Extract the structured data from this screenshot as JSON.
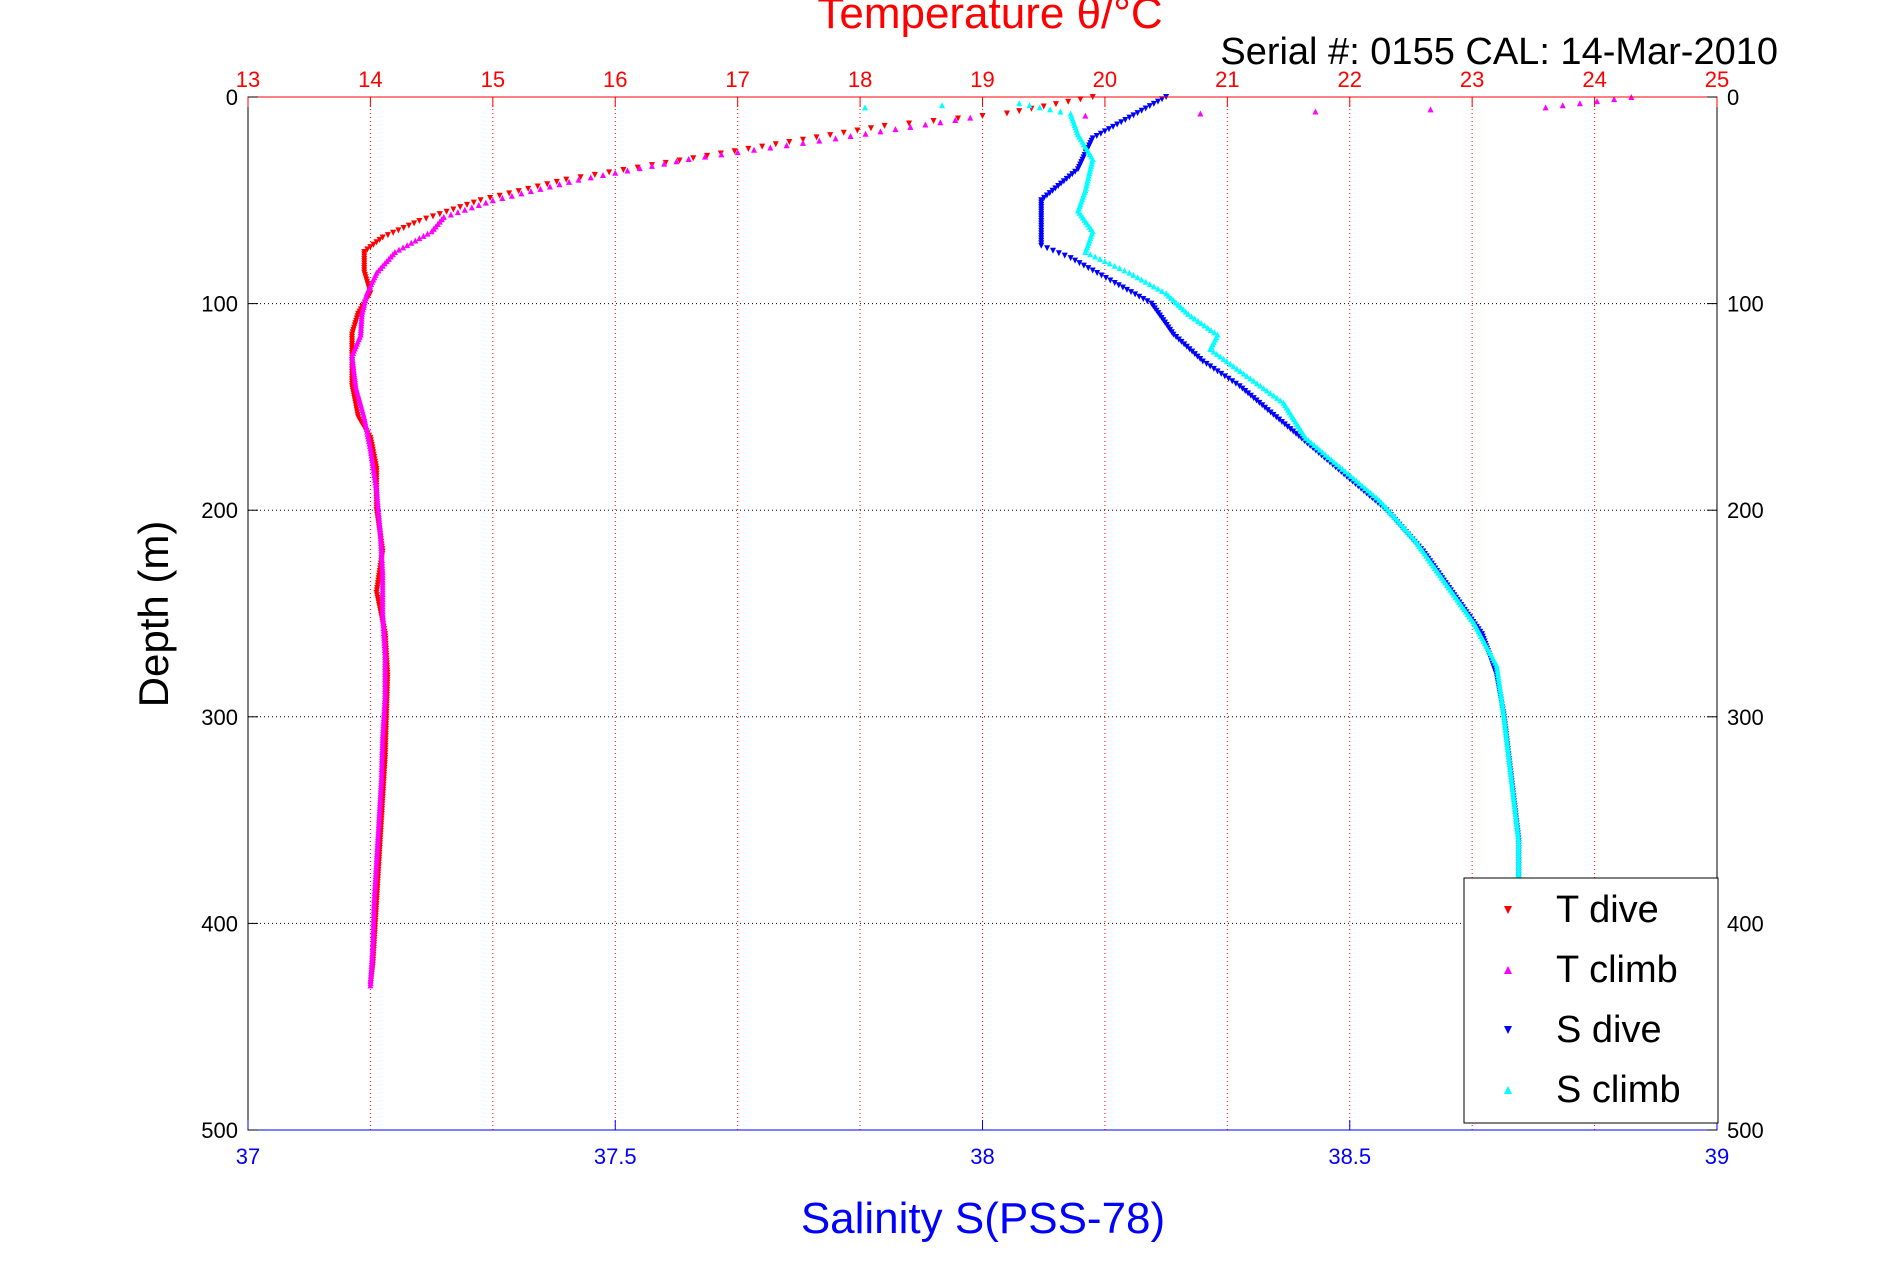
{
  "chart_data": {
    "type": "scatter",
    "title_top": "Temperature θ/°C",
    "subtitle": "Serial #: 0155  CAL: 14-Mar-2010",
    "xlabel_bottom": "Salinity S(PSS-78)",
    "ylabel": "Depth (m)",
    "x_top_axis": {
      "label": "Temperature θ/°C",
      "range": [
        13,
        25
      ],
      "ticks": [
        "13",
        "14",
        "15",
        "16",
        "17",
        "18",
        "19",
        "20",
        "21",
        "22",
        "23",
        "24",
        "25"
      ]
    },
    "x_bottom_axis": {
      "label": "Salinity S(PSS-78)",
      "range": [
        37,
        39
      ],
      "ticks": [
        "37",
        "37.5",
        "38",
        "38.5",
        "39"
      ]
    },
    "y_axis": {
      "label": "Depth (m)",
      "range": [
        0,
        500
      ],
      "reversed": true,
      "ticks": [
        "0",
        "100",
        "200",
        "300",
        "400",
        "500"
      ]
    },
    "grid": true,
    "legend_position": "bottom-right",
    "colors": {
      "t_dive": "#ff0000",
      "t_climb": "#ff00ff",
      "s_dive": "#0000ff",
      "s_climb": "#00ffff",
      "temp_axis": "#ff0000",
      "sal_axis": "#0000ff"
    },
    "series": [
      {
        "name": "T dive",
        "axis": "temperature",
        "color": "#ff0000",
        "marker": "triangle-down",
        "points": [
          [
            19.9,
            0
          ],
          [
            19.2,
            8
          ],
          [
            18.2,
            14
          ],
          [
            17.2,
            24
          ],
          [
            16.3,
            33
          ],
          [
            15.6,
            40
          ],
          [
            14.9,
            50
          ],
          [
            14.4,
            60
          ],
          [
            14.1,
            68
          ],
          [
            13.95,
            75
          ],
          [
            13.95,
            85
          ],
          [
            14.0,
            95
          ],
          [
            13.9,
            105
          ],
          [
            13.85,
            115
          ],
          [
            13.85,
            125
          ],
          [
            13.85,
            140
          ],
          [
            13.9,
            155
          ],
          [
            14.0,
            165
          ],
          [
            14.05,
            180
          ],
          [
            14.05,
            200
          ],
          [
            14.1,
            220
          ],
          [
            14.05,
            240
          ],
          [
            14.12,
            260
          ],
          [
            14.14,
            280
          ],
          [
            14.13,
            300
          ],
          [
            14.12,
            320
          ],
          [
            14.1,
            340
          ],
          [
            14.08,
            360
          ],
          [
            14.06,
            380
          ],
          [
            14.04,
            400
          ],
          [
            14.02,
            420
          ],
          [
            14.0,
            430
          ]
        ]
      },
      {
        "name": "T climb",
        "axis": "temperature",
        "color": "#ff00ff",
        "marker": "triangle-up",
        "points": [
          [
            24.3,
            0
          ],
          [
            23.6,
            5
          ],
          [
            18.9,
            10
          ],
          [
            17.8,
            20
          ],
          [
            16.6,
            30
          ],
          [
            15.7,
            40
          ],
          [
            15.0,
            50
          ],
          [
            14.6,
            58
          ],
          [
            14.5,
            65
          ],
          [
            14.2,
            75
          ],
          [
            14.05,
            85
          ],
          [
            13.97,
            95
          ],
          [
            13.93,
            105
          ],
          [
            13.92,
            115
          ],
          [
            13.85,
            125
          ],
          [
            13.88,
            140
          ],
          [
            13.95,
            155
          ],
          [
            14.0,
            170
          ],
          [
            14.05,
            190
          ],
          [
            14.08,
            210
          ],
          [
            14.1,
            230
          ],
          [
            14.1,
            250
          ],
          [
            14.12,
            270
          ],
          [
            14.12,
            290
          ],
          [
            14.1,
            310
          ],
          [
            14.09,
            330
          ],
          [
            14.07,
            350
          ],
          [
            14.05,
            370
          ],
          [
            14.03,
            390
          ],
          [
            14.02,
            410
          ],
          [
            14.0,
            430
          ]
        ]
      }
    ],
    "series_s": [
      {
        "name": "S dive",
        "axis": "salinity",
        "color": "#0000ff",
        "marker": "triangle-down",
        "points": [
          [
            38.25,
            0
          ],
          [
            38.2,
            10
          ],
          [
            38.15,
            20
          ],
          [
            38.13,
            35
          ],
          [
            38.08,
            50
          ],
          [
            38.08,
            60
          ],
          [
            38.08,
            72
          ],
          [
            38.12,
            78
          ],
          [
            38.18,
            90
          ],
          [
            38.23,
            100
          ],
          [
            38.26,
            115
          ],
          [
            38.3,
            128
          ],
          [
            38.35,
            140
          ],
          [
            38.4,
            155
          ],
          [
            38.45,
            170
          ],
          [
            38.5,
            185
          ],
          [
            38.55,
            200
          ],
          [
            38.6,
            220
          ],
          [
            38.64,
            240
          ],
          [
            38.68,
            260
          ],
          [
            38.7,
            280
          ],
          [
            38.71,
            300
          ],
          [
            38.72,
            330
          ],
          [
            38.73,
            360
          ],
          [
            38.73,
            380
          ]
        ]
      },
      {
        "name": "S climb",
        "axis": "salinity",
        "color": "#00ffff",
        "marker": "triangle-up",
        "points": [
          [
            37.84,
            5
          ],
          [
            38.05,
            3
          ],
          [
            38.12,
            8
          ],
          [
            38.13,
            18
          ],
          [
            38.15,
            30
          ],
          [
            38.14,
            45
          ],
          [
            38.13,
            55
          ],
          [
            38.15,
            65
          ],
          [
            38.14,
            75
          ],
          [
            38.2,
            85
          ],
          [
            38.25,
            95
          ],
          [
            38.28,
            105
          ],
          [
            38.32,
            115
          ],
          [
            38.31,
            122
          ],
          [
            38.36,
            135
          ],
          [
            38.41,
            148
          ],
          [
            38.44,
            165
          ],
          [
            38.49,
            180
          ],
          [
            38.54,
            195
          ],
          [
            38.59,
            215
          ],
          [
            38.63,
            235
          ],
          [
            38.67,
            255
          ],
          [
            38.7,
            275
          ],
          [
            38.71,
            300
          ],
          [
            38.72,
            330
          ],
          [
            38.73,
            360
          ],
          [
            38.73,
            380
          ]
        ]
      }
    ]
  },
  "legend": {
    "items": [
      {
        "label": "T dive",
        "color": "#ff0000",
        "marker": "triangle-down"
      },
      {
        "label": "T climb",
        "color": "#ff00ff",
        "marker": "triangle-up"
      },
      {
        "label": "S dive",
        "color": "#0000ff",
        "marker": "triangle-down"
      },
      {
        "label": "S climb",
        "color": "#00ffff",
        "marker": "triangle-up"
      }
    ]
  }
}
